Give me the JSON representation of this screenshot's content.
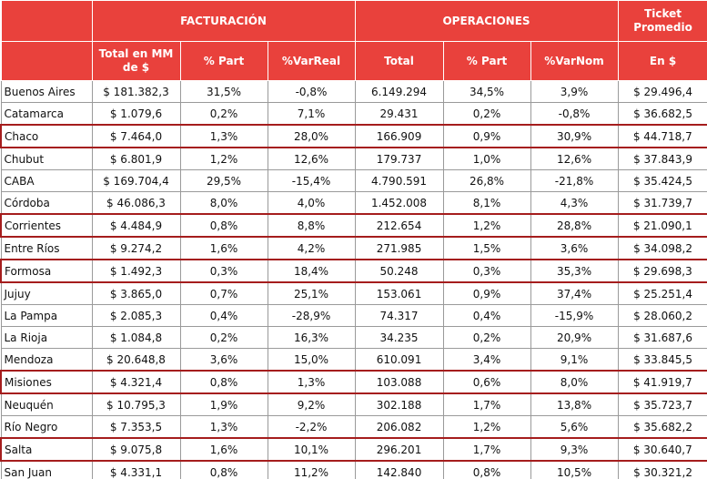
{
  "table": {
    "groups": [
      "FACTURACIÓN",
      "OPERACIONES",
      "Ticket Promedio"
    ],
    "columns": [
      "Total en MM de $",
      "% Part",
      "%VarReal",
      "Total",
      "% Part",
      "%VarNom",
      "En $"
    ],
    "rows": [
      [
        "Buenos Aires",
        "$ 181.382,3",
        "31,5%",
        "-0,8%",
        "6.149.294",
        "34,5%",
        "3,9%",
        "$ 29.496,4"
      ],
      [
        "Catamarca",
        "$ 1.079,6",
        "0,2%",
        "7,1%",
        "29.431",
        "0,2%",
        "-0,8%",
        "$ 36.682,5"
      ],
      [
        "Chaco",
        "$ 7.464,0",
        "1,3%",
        "28,0%",
        "166.909",
        "0,9%",
        "30,9%",
        "$ 44.718,7"
      ],
      [
        "Chubut",
        "$ 6.801,9",
        "1,2%",
        "12,6%",
        "179.737",
        "1,0%",
        "12,6%",
        "$ 37.843,9"
      ],
      [
        "CABA",
        "$ 169.704,4",
        "29,5%",
        "-15,4%",
        "4.790.591",
        "26,8%",
        "-21,8%",
        "$ 35.424,5"
      ],
      [
        "Córdoba",
        "$ 46.086,3",
        "8,0%",
        "4,0%",
        "1.452.008",
        "8,1%",
        "4,3%",
        "$ 31.739,7"
      ],
      [
        "Corrientes",
        "$ 4.484,9",
        "0,8%",
        "8,8%",
        "212.654",
        "1,2%",
        "28,8%",
        "$ 21.090,1"
      ],
      [
        "Entre Ríos",
        "$ 9.274,2",
        "1,6%",
        "4,2%",
        "271.985",
        "1,5%",
        "3,6%",
        "$ 34.098,2"
      ],
      [
        "Formosa",
        "$ 1.492,3",
        "0,3%",
        "18,4%",
        "50.248",
        "0,3%",
        "35,3%",
        "$ 29.698,3"
      ],
      [
        "Jujuy",
        "$ 3.865,0",
        "0,7%",
        "25,1%",
        "153.061",
        "0,9%",
        "37,4%",
        "$ 25.251,4"
      ],
      [
        "La Pampa",
        "$ 2.085,3",
        "0,4%",
        "-28,9%",
        "74.317",
        "0,4%",
        "-15,9%",
        "$ 28.060,2"
      ],
      [
        "La Rioja",
        "$ 1.084,8",
        "0,2%",
        "16,3%",
        "34.235",
        "0,2%",
        "20,9%",
        "$ 31.687,6"
      ],
      [
        "Mendoza",
        "$ 20.648,8",
        "3,6%",
        "15,0%",
        "610.091",
        "3,4%",
        "9,1%",
        "$ 33.845,5"
      ],
      [
        "Misiones",
        "$ 4.321,4",
        "0,8%",
        "1,3%",
        "103.088",
        "0,6%",
        "8,0%",
        "$ 41.919,7"
      ],
      [
        "Neuquén",
        "$ 10.795,3",
        "1,9%",
        "9,2%",
        "302.188",
        "1,7%",
        "13,8%",
        "$ 35.723,7"
      ],
      [
        "Río Negro",
        "$ 7.353,5",
        "1,3%",
        "-2,2%",
        "206.082",
        "1,2%",
        "5,6%",
        "$ 35.682,2"
      ],
      [
        "Salta",
        "$ 9.075,8",
        "1,6%",
        "10,1%",
        "296.201",
        "1,7%",
        "9,3%",
        "$ 30.640,7"
      ],
      [
        "San Juan",
        "$ 4.331,1",
        "0,8%",
        "11,2%",
        "142.840",
        "0,8%",
        "10,5%",
        "$ 30.321,2"
      ]
    ]
  }
}
